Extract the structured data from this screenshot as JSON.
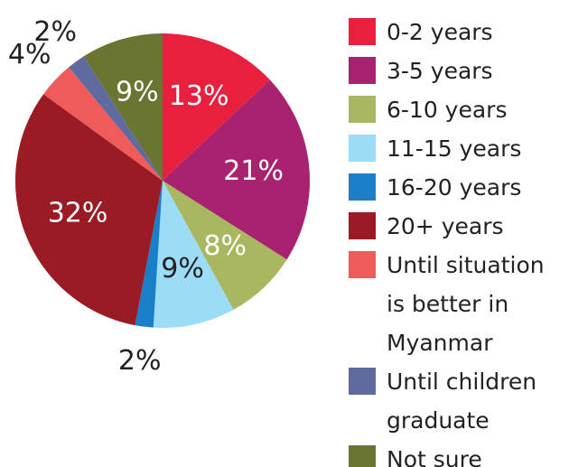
{
  "chart_data": {
    "type": "pie",
    "categories": [
      "0-2 years",
      "3-5 years",
      "6-10 years",
      "11-15 years",
      "16-20 years",
      "20+ years",
      "Until situation is better in Myanmar",
      "Until children graduate",
      "Not sure"
    ],
    "values": [
      13,
      21,
      8,
      9,
      2,
      32,
      4,
      2,
      9
    ],
    "value_labels": [
      "13%",
      "21%",
      "8%",
      "9%",
      "2%",
      "32%",
      "4%",
      "2%",
      "9%"
    ],
    "colors": [
      "#e8203e",
      "#a8236f",
      "#a9b761",
      "#9cdcf7",
      "#1a7fc7",
      "#9b1b24",
      "#ef5b5b",
      "#5f6a9e",
      "#6a7533"
    ],
    "legend": "right"
  }
}
